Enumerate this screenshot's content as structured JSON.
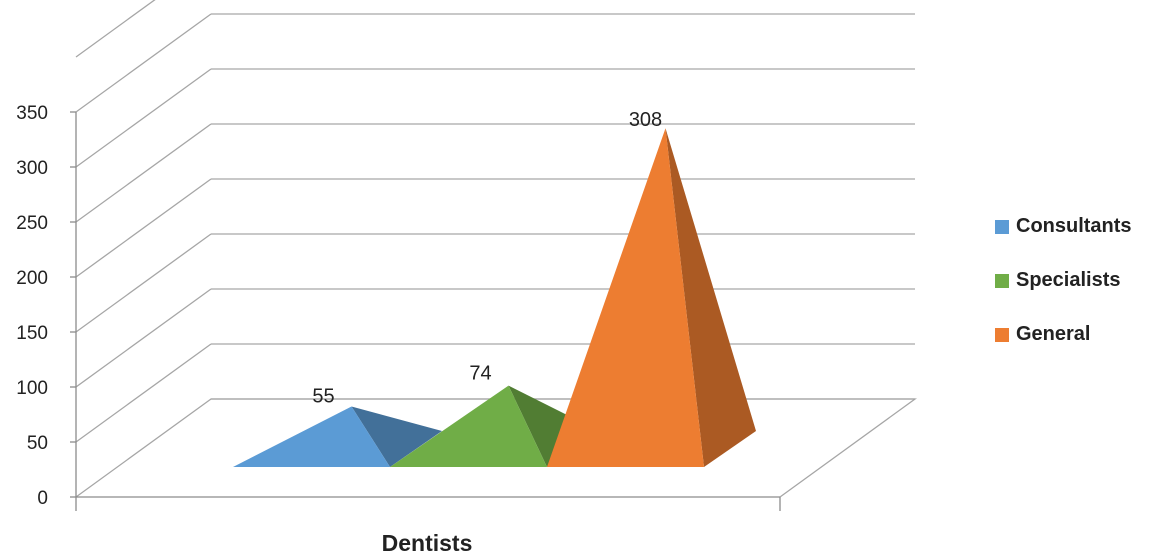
{
  "chart_data": {
    "type": "bar",
    "subtype": "3d-pyramid",
    "categories": [
      "Dentists"
    ],
    "xlabel": "Dentists",
    "ylim": [
      0,
      350
    ],
    "yticks": [
      "0",
      "50",
      "100",
      "150",
      "200",
      "250",
      "300",
      "350"
    ],
    "grid": true,
    "legend_position": "right",
    "series": [
      {
        "name": "Consultants",
        "values": [
          55
        ],
        "label": "55",
        "color": "#5b9bd5"
      },
      {
        "name": "Specialists",
        "values": [
          74
        ],
        "label": "74",
        "color": "#70ad47"
      },
      {
        "name": "General",
        "values": [
          308
        ],
        "label": "308",
        "color": "#ed7d31"
      }
    ]
  }
}
